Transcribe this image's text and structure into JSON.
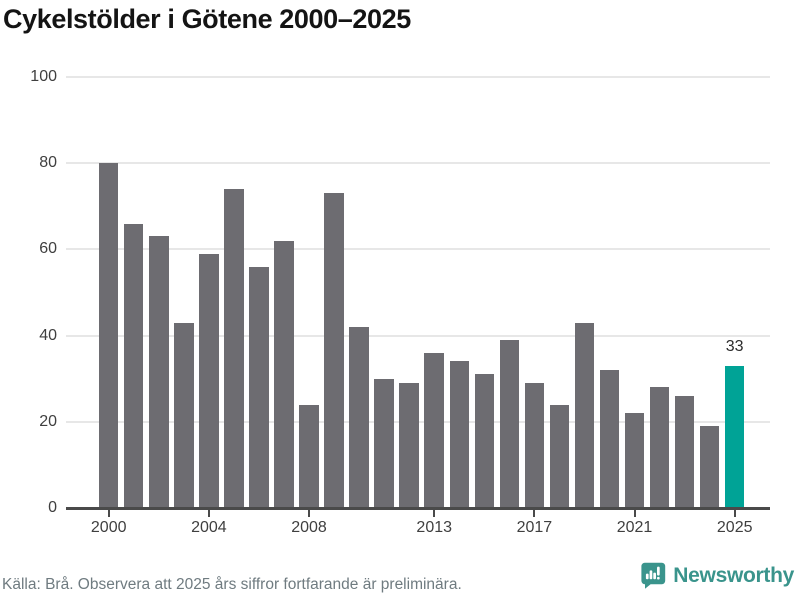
{
  "title": "Cykelstölder i Götene 2000–2025",
  "footer": {
    "source_note": "Källa: Brå. Observera att 2025 års siffror fortfarande är preliminära.",
    "brand_name": "Newsworthy"
  },
  "icons": {
    "brand_logo": "newsworthy-speech-bubble-barchart-icon"
  },
  "colors": {
    "bar": "#6d6c71",
    "highlight": "#00a396",
    "grid": "#e7e7e7",
    "axis": "#4a4a4a",
    "tick_label": "#3f3f3f",
    "data_label": "#2b2b2b",
    "title": "#141414",
    "footer_text": "#6f7b80",
    "brand_teal": "#3a948c"
  },
  "chart_data": {
    "type": "bar",
    "title": "Cykelstölder i Götene 2000–2025",
    "x": [
      2000,
      2001,
      2002,
      2003,
      2004,
      2005,
      2006,
      2007,
      2008,
      2009,
      2010,
      2011,
      2012,
      2013,
      2014,
      2015,
      2016,
      2017,
      2018,
      2019,
      2020,
      2021,
      2022,
      2023,
      2024,
      2025
    ],
    "values": [
      80,
      66,
      63,
      43,
      59,
      74,
      56,
      62,
      24,
      73,
      42,
      30,
      29,
      36,
      34,
      31,
      39,
      29,
      24,
      43,
      32,
      22,
      28,
      26,
      19,
      33
    ],
    "highlight": {
      "year": 2025,
      "value": 33,
      "label": "33"
    },
    "yticks": [
      0,
      20,
      40,
      60,
      80,
      100
    ],
    "ylim": [
      0,
      100
    ],
    "xtick_labels": [
      "2000",
      "2004",
      "2008",
      "2013",
      "2017",
      "2021",
      "2025"
    ],
    "grid": "horizontal",
    "legend": "none",
    "xlabel": "",
    "ylabel": ""
  }
}
